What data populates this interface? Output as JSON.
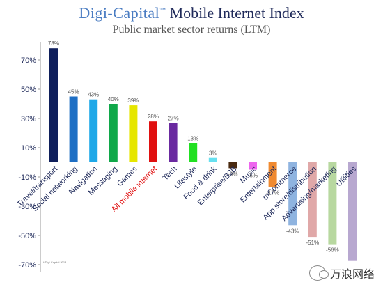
{
  "header": {
    "brand": "Digi-Capital",
    "brand_tm": "™",
    "index_name": "Mobile Internet Index",
    "subtitle": "Public market sector returns (LTM)"
  },
  "watermark": {
    "icon": "wechat-icon",
    "text": "万浪网络"
  },
  "chart_data": {
    "type": "bar",
    "title": "",
    "xlabel": "",
    "ylabel": "",
    "ylim": [
      -70,
      80
    ],
    "yticks": [
      70,
      50,
      30,
      10,
      -10,
      -30,
      -50,
      -70
    ],
    "ytick_labels": [
      "70%",
      "50%",
      "30%",
      "10%",
      "-10%",
      "-30%",
      "-50%",
      "-70%"
    ],
    "grid": false,
    "legend": "none",
    "source_note": "* Digi-Capital 2014",
    "categories": [
      "Travel/transport",
      "Social networking",
      "Navigation",
      "Messaging",
      "Games",
      "All mobile internet",
      "Tech",
      "Lifestyle",
      "Food & drink",
      "Enterprise/B2B",
      "Music",
      "Entertainment",
      "mCommerce",
      "App store/distribution",
      "Advertising/marketing",
      "Utilities"
    ],
    "values": [
      78,
      45,
      43,
      40,
      39,
      28,
      27,
      13,
      3,
      -4,
      -5,
      -17,
      -43,
      -51,
      -56,
      -67
    ],
    "value_labels": [
      "78%",
      "45%",
      "43%",
      "40%",
      "39%",
      "28%",
      "27%",
      "13%",
      "3%",
      "-4%",
      "-5%",
      "-17%",
      "-43%",
      "-51%",
      "-56%",
      ""
    ],
    "colors": [
      "#0f1f5c",
      "#1f6fc4",
      "#1ea8e8",
      "#10a84a",
      "#e6e600",
      "#e01010",
      "#6a2aa0",
      "#22e022",
      "#66e0f0",
      "#4a2a10",
      "#ee66ee",
      "#f08a30",
      "#8fb4e0",
      "#e0a8a8",
      "#b8d8a0",
      "#b8a8d0"
    ],
    "label_colors": [
      "#1f2a5a",
      "#1f2a5a",
      "#1f2a5a",
      "#1f2a5a",
      "#1f2a5a",
      "#e01010",
      "#1f2a5a",
      "#1f2a5a",
      "#1f2a5a",
      "#1f2a5a",
      "#1f2a5a",
      "#1f2a5a",
      "#1f2a5a",
      "#1f2a5a",
      "#1f2a5a",
      "#1f2a5a"
    ]
  }
}
